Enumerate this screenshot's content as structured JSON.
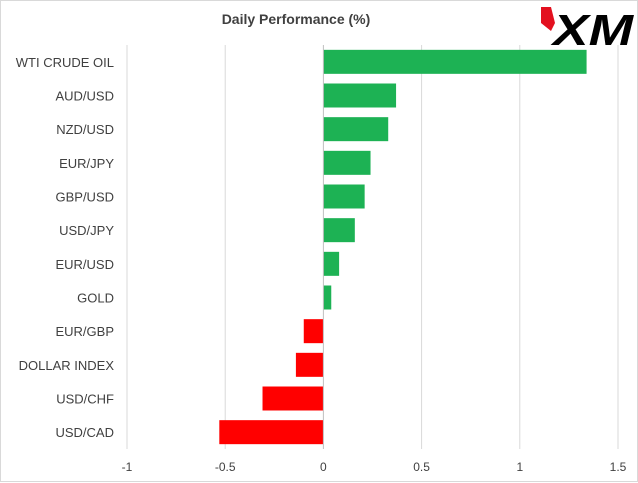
{
  "chart_data": {
    "type": "bar",
    "orientation": "horizontal",
    "title": "Daily Performance  (%)",
    "categories": [
      "WTI CRUDE OIL",
      "AUD/USD",
      "NZD/USD",
      "EUR/JPY",
      "GBP/USD",
      "USD/JPY",
      "EUR/USD",
      "GOLD",
      "EUR/GBP",
      "DOLLAR INDEX",
      "USD/CHF",
      "USD/CAD"
    ],
    "values": [
      1.34,
      0.37,
      0.33,
      0.24,
      0.21,
      0.16,
      0.08,
      0.04,
      -0.1,
      -0.14,
      -0.31,
      -0.53
    ],
    "xlim": [
      -1,
      1.5
    ],
    "xticks": [
      -1,
      -0.5,
      0,
      0.5,
      1,
      1.5
    ],
    "xtick_labels": [
      "-1",
      "-0.5",
      "0",
      "0.5",
      "1",
      "1.5"
    ],
    "grid": "vertical",
    "positive_color": "#1db254",
    "negative_color": "#ff0000"
  },
  "logo": {
    "brand": "XM",
    "text": "XM",
    "accent_color": "#e3101f",
    "color": "#000000"
  }
}
